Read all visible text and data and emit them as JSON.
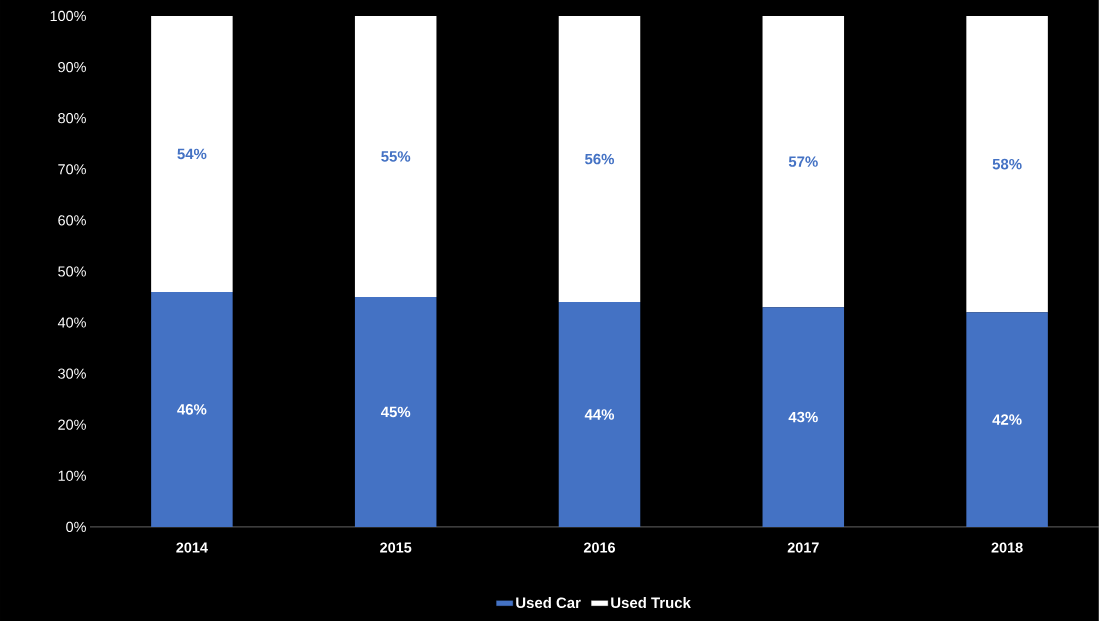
{
  "chart_data": {
    "type": "bar",
    "stacked": true,
    "categories": [
      "2014",
      "2015",
      "2016",
      "2017",
      "2018"
    ],
    "series": [
      {
        "name": "Used Car",
        "color": "#4472c4",
        "values": [
          46,
          45,
          44,
          43,
          42
        ],
        "value_labels": [
          "46%",
          "45%",
          "44%",
          "43%",
          "42%"
        ]
      },
      {
        "name": "Used Truck",
        "color": "#ffffff",
        "values": [
          54,
          55,
          56,
          57,
          58
        ],
        "value_labels": [
          "54%",
          "55%",
          "56%",
          "57%",
          "58%"
        ]
      }
    ],
    "ylim": [
      0,
      100
    ],
    "yticks": [
      {
        "value": 0,
        "label": "0%"
      },
      {
        "value": 10,
        "label": "10%"
      },
      {
        "value": 20,
        "label": "20%"
      },
      {
        "value": 30,
        "label": "30%"
      },
      {
        "value": 40,
        "label": "40%"
      },
      {
        "value": 50,
        "label": "50%"
      },
      {
        "value": 60,
        "label": "60%"
      },
      {
        "value": 70,
        "label": "70%"
      },
      {
        "value": 80,
        "label": "80%"
      },
      {
        "value": 90,
        "label": "90%"
      },
      {
        "value": 100,
        "label": "100%"
      }
    ],
    "grid": false,
    "legend": "bottom"
  }
}
